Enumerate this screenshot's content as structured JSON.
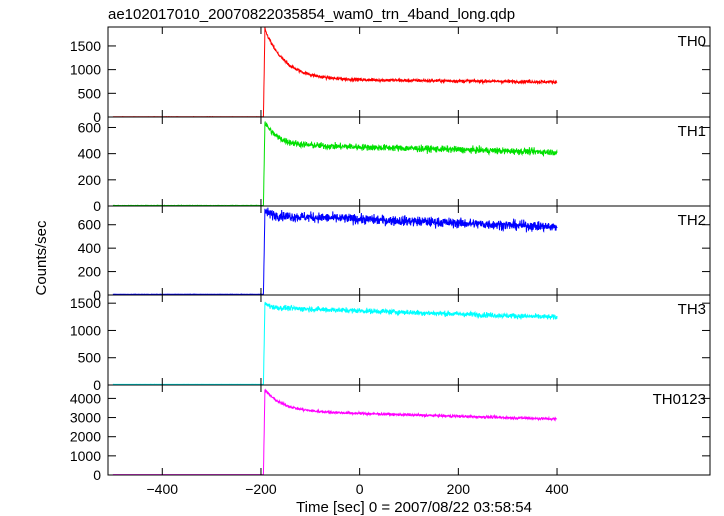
{
  "title": "ae102017010_20070822035854_wam0_trn_4band_long.qdp",
  "ylabel": "Counts/sec",
  "xlabel": "Time [sec] 0 = 2007/08/22 03:58:54",
  "chart_data": {
    "type": "line",
    "xlim": [
      -510,
      710
    ],
    "x_ticks": [
      -400,
      -200,
      0,
      200,
      400
    ],
    "x_tick_labels": [
      "−400",
      "−200",
      "0",
      "200",
      "400"
    ],
    "grid": false,
    "panels": [
      {
        "name": "TH0",
        "color": "#ff0000",
        "ylim": [
          0,
          1900
        ],
        "yticks": [
          0,
          500,
          1000,
          1500
        ],
        "yticklabels": [
          "0",
          "500",
          "1000",
          "1500"
        ],
        "profile": {
          "t0": -195,
          "pre": 5,
          "peak": 1850,
          "plateau": 800,
          "tau": 40,
          "end": 740,
          "noise": 25
        }
      },
      {
        "name": "TH1",
        "color": "#00e000",
        "ylim": [
          0,
          680
        ],
        "yticks": [
          0,
          200,
          400,
          600
        ],
        "yticklabels": [
          "0",
          "200",
          "400",
          "600"
        ],
        "profile": {
          "t0": -195,
          "pre": 3,
          "peak": 640,
          "plateau": 470,
          "tau": 25,
          "end": 410,
          "noise": 18
        }
      },
      {
        "name": "TH2",
        "color": "#0000ff",
        "ylim": [
          0,
          760
        ],
        "yticks": [
          0,
          200,
          400,
          600
        ],
        "yticklabels": [
          "0",
          "200",
          "400",
          "600"
        ],
        "profile": {
          "t0": -195,
          "pre": 5,
          "peak": 720,
          "plateau": 680,
          "tau": 10,
          "end": 580,
          "noise": 30
        }
      },
      {
        "name": "TH3",
        "color": "#00ffff",
        "ylim": [
          0,
          1650
        ],
        "yticks": [
          0,
          500,
          1000,
          1500
        ],
        "yticklabels": [
          "0",
          "500",
          "1000",
          "1500"
        ],
        "profile": {
          "t0": -195,
          "pre": 10,
          "peak": 1500,
          "plateau": 1420,
          "tau": 10,
          "end": 1240,
          "noise": 35
        }
      },
      {
        "name": "TH0123",
        "color": "#ff00ff",
        "ylim": [
          0,
          4700
        ],
        "yticks": [
          0,
          1000,
          2000,
          3000,
          4000
        ],
        "yticklabels": [
          "0",
          "1000",
          "2000",
          "3000",
          "4000"
        ],
        "profile": {
          "t0": -195,
          "pre": 20,
          "peak": 4450,
          "plateau": 3350,
          "tau": 35,
          "end": 2920,
          "noise": 50
        }
      }
    ]
  }
}
